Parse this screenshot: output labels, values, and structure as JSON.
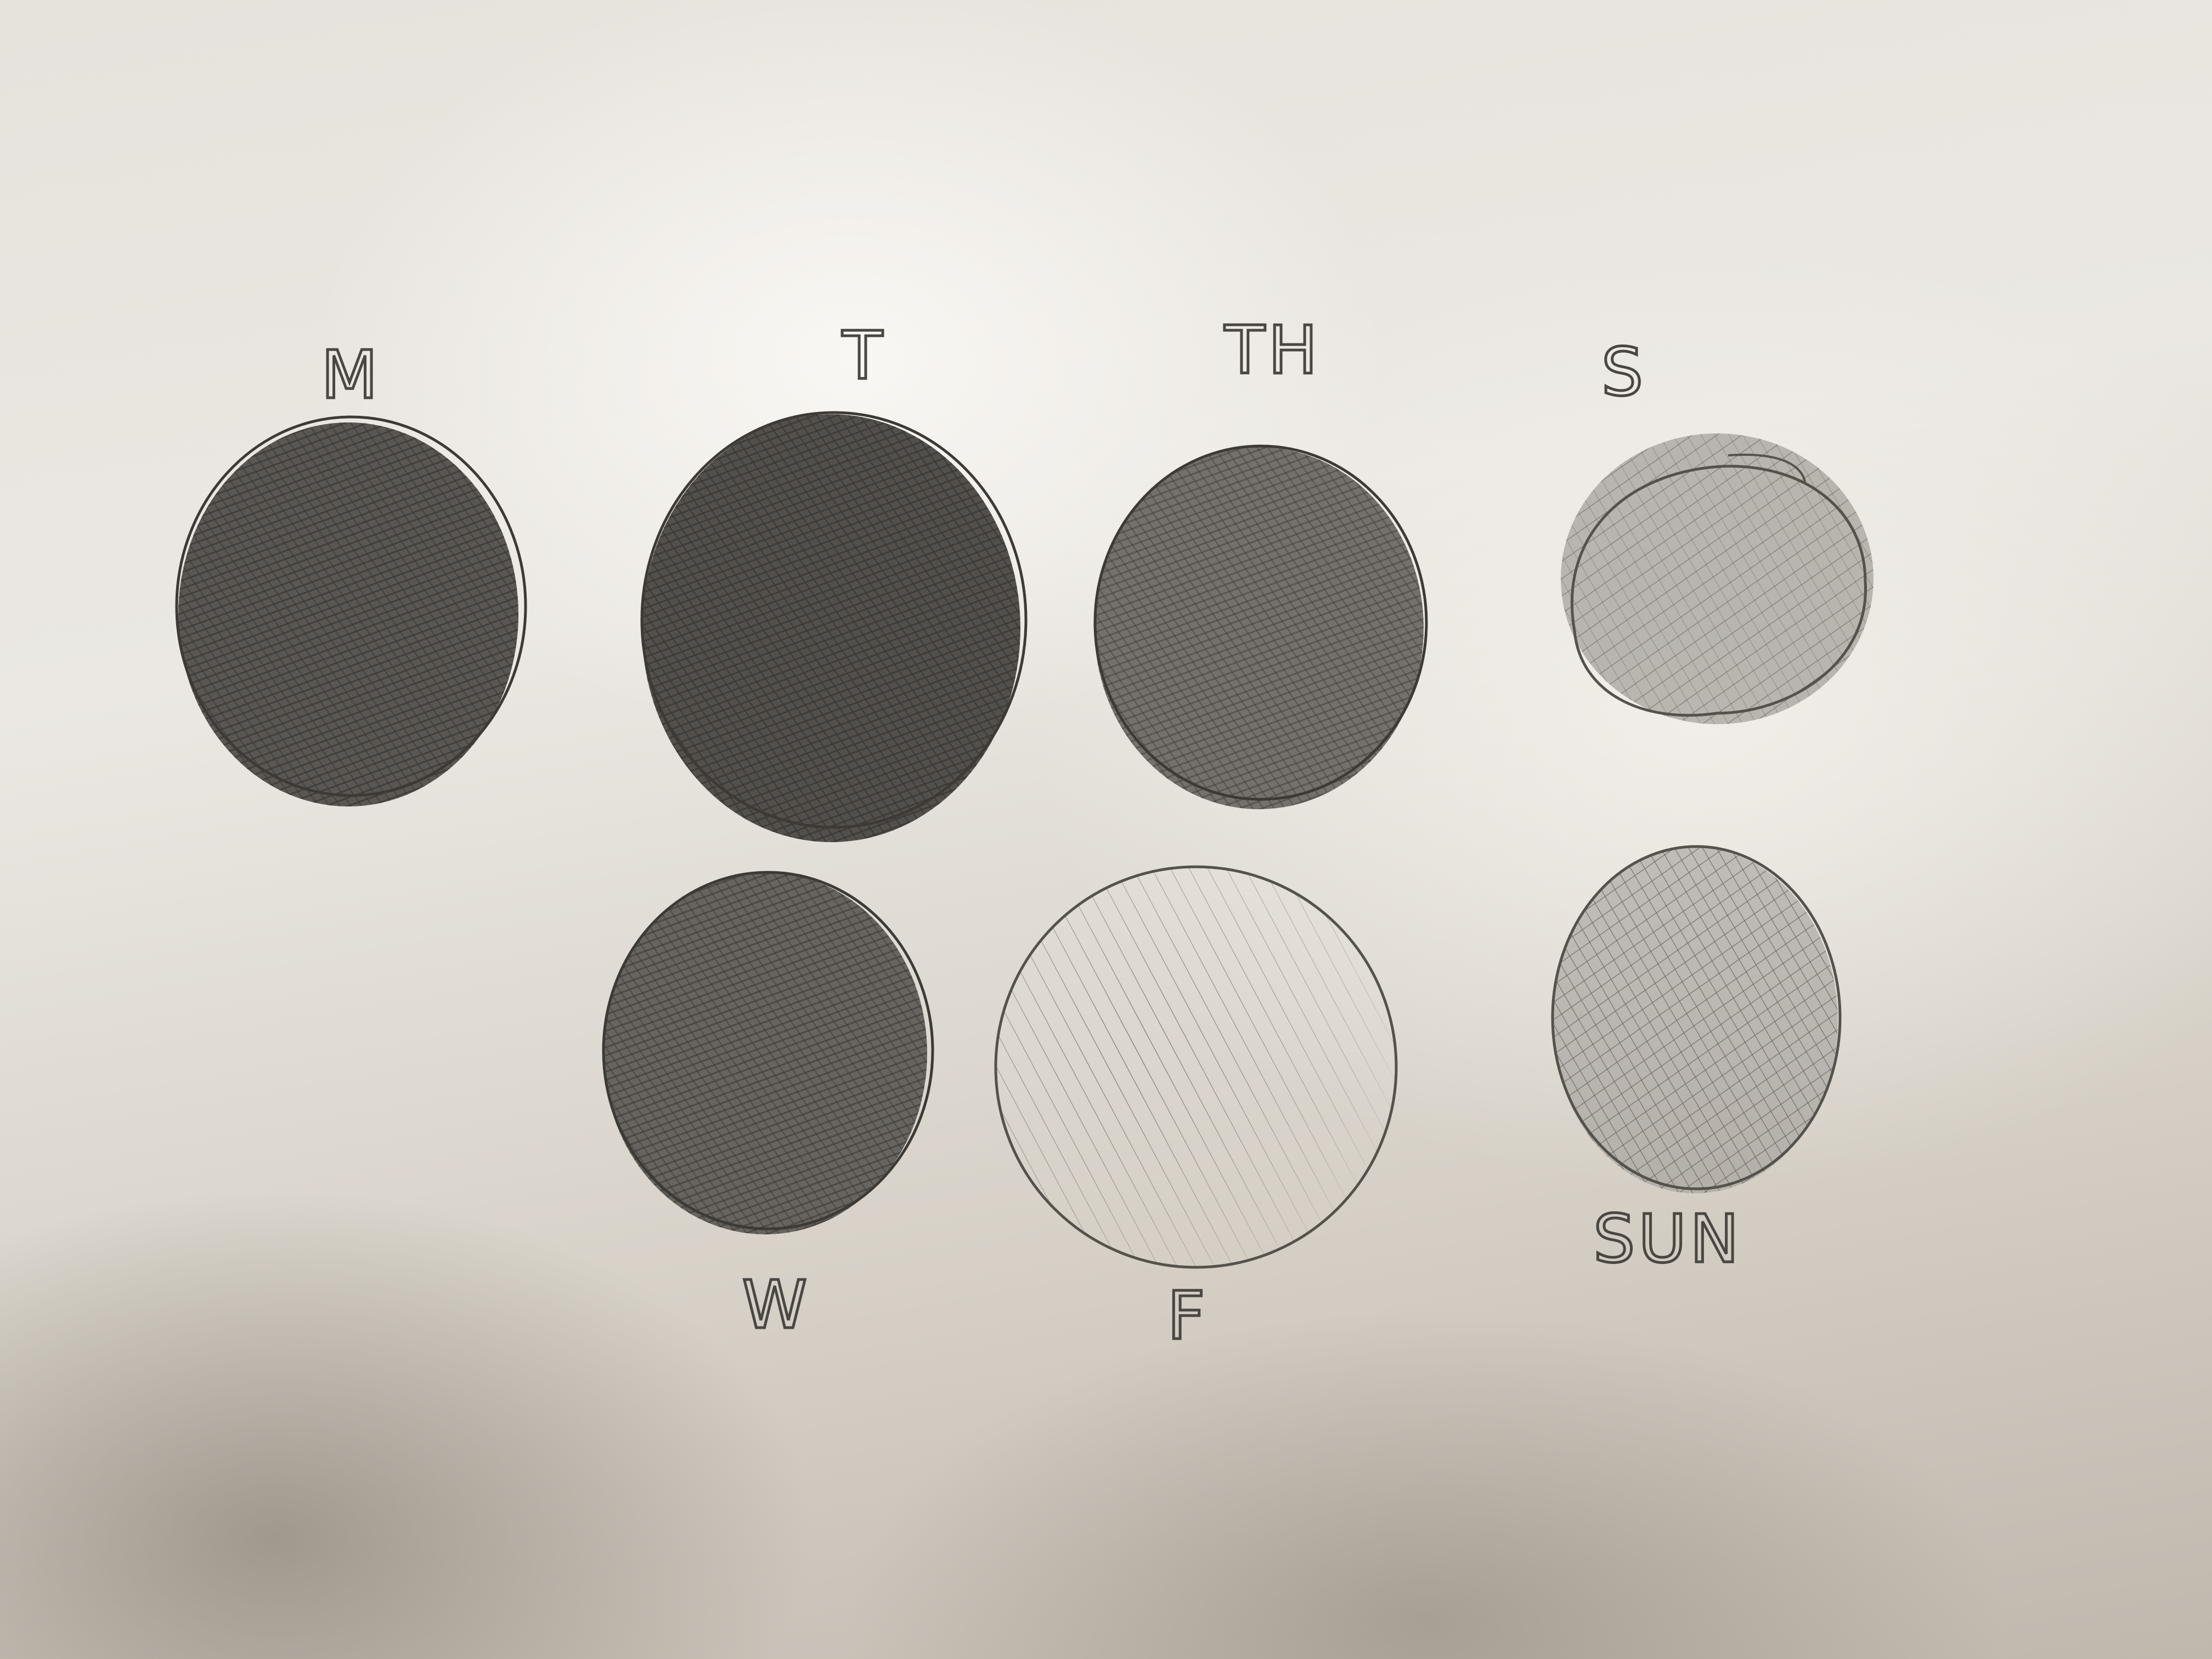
{
  "labels": {
    "monday": "M",
    "tuesday": "T",
    "wednesday": "W",
    "thursday": "TH",
    "friday": "F",
    "saturday": "S",
    "sunday": "SUN"
  },
  "shading": {
    "monday": 0.85,
    "tuesday": 0.9,
    "wednesday": 0.75,
    "thursday": 0.65,
    "friday": 0.15,
    "saturday": 0.3,
    "sunday": 0.35
  },
  "colors": {
    "paper": "#ebe8e3",
    "pencil": "#4a4742"
  }
}
